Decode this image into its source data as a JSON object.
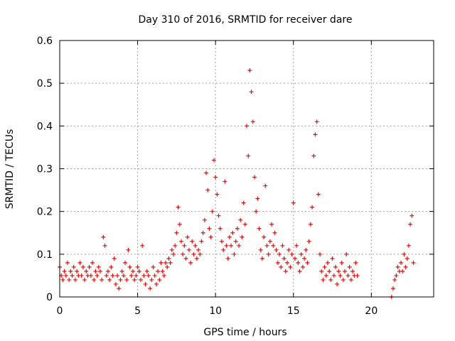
{
  "chart_data": {
    "type": "scatter",
    "title": "Day 310 of 2016, SRMTID for receiver dare",
    "xlabel": "GPS time / hours",
    "ylabel": "SRMTID / TECUs",
    "xlim": [
      0,
      24
    ],
    "ylim": [
      0,
      0.6
    ],
    "xticks": [
      0,
      5,
      10,
      15,
      20
    ],
    "yticks": [
      0,
      0.1,
      0.2,
      0.3,
      0.4,
      0.5,
      0.6
    ],
    "xtick_labels": [
      "0",
      "5",
      "10",
      "15",
      "20"
    ],
    "ytick_labels": [
      "0",
      "0.1",
      "0.2",
      "0.3",
      "0.4",
      "0.5",
      "0.6"
    ],
    "grid": true,
    "marker": "+",
    "series": [
      {
        "name": "SRMTID",
        "color": "#ff0000",
        "points": [
          [
            0.0,
            0.07
          ],
          [
            0.1,
            0.05
          ],
          [
            0.2,
            0.04
          ],
          [
            0.3,
            0.06
          ],
          [
            0.4,
            0.05
          ],
          [
            0.5,
            0.08
          ],
          [
            0.6,
            0.04
          ],
          [
            0.7,
            0.06
          ],
          [
            0.8,
            0.05
          ],
          [
            0.9,
            0.07
          ],
          [
            1.0,
            0.04
          ],
          [
            1.1,
            0.06
          ],
          [
            1.2,
            0.05
          ],
          [
            1.3,
            0.08
          ],
          [
            1.4,
            0.05
          ],
          [
            1.5,
            0.07
          ],
          [
            1.6,
            0.04
          ],
          [
            1.7,
            0.06
          ],
          [
            1.8,
            0.05
          ],
          [
            1.9,
            0.07
          ],
          [
            2.0,
            0.05
          ],
          [
            2.1,
            0.08
          ],
          [
            2.2,
            0.04
          ],
          [
            2.3,
            0.06
          ],
          [
            2.4,
            0.05
          ],
          [
            2.5,
            0.07
          ],
          [
            2.6,
            0.06
          ],
          [
            2.7,
            0.04
          ],
          [
            2.8,
            0.14
          ],
          [
            2.9,
            0.12
          ],
          [
            3.0,
            0.05
          ],
          [
            3.1,
            0.06
          ],
          [
            3.2,
            0.04
          ],
          [
            3.3,
            0.07
          ],
          [
            3.4,
            0.05
          ],
          [
            3.5,
            0.09
          ],
          [
            3.6,
            0.03
          ],
          [
            3.7,
            0.05
          ],
          [
            3.8,
            0.02
          ],
          [
            3.9,
            0.04
          ],
          [
            4.0,
            0.06
          ],
          [
            4.1,
            0.05
          ],
          [
            4.2,
            0.08
          ],
          [
            4.3,
            0.04
          ],
          [
            4.4,
            0.11
          ],
          [
            4.5,
            0.07
          ],
          [
            4.6,
            0.05
          ],
          [
            4.7,
            0.06
          ],
          [
            4.8,
            0.04
          ],
          [
            4.9,
            0.05
          ],
          [
            5.0,
            0.07
          ],
          [
            5.1,
            0.06
          ],
          [
            5.2,
            0.04
          ],
          [
            5.3,
            0.12
          ],
          [
            5.4,
            0.05
          ],
          [
            5.5,
            0.03
          ],
          [
            5.6,
            0.06
          ],
          [
            5.7,
            0.05
          ],
          [
            5.8,
            0.02
          ],
          [
            5.9,
            0.04
          ],
          [
            6.0,
            0.07
          ],
          [
            6.1,
            0.05
          ],
          [
            6.2,
            0.03
          ],
          [
            6.3,
            0.06
          ],
          [
            6.4,
            0.04
          ],
          [
            6.5,
            0.08
          ],
          [
            6.6,
            0.06
          ],
          [
            6.7,
            0.05
          ],
          [
            6.8,
            0.08
          ],
          [
            6.9,
            0.07
          ],
          [
            7.0,
            0.09
          ],
          [
            7.1,
            0.08
          ],
          [
            7.2,
            0.11
          ],
          [
            7.3,
            0.1
          ],
          [
            7.4,
            0.12
          ],
          [
            7.5,
            0.15
          ],
          [
            7.6,
            0.21
          ],
          [
            7.7,
            0.17
          ],
          [
            7.8,
            0.13
          ],
          [
            7.9,
            0.1
          ],
          [
            8.0,
            0.12
          ],
          [
            8.1,
            0.09
          ],
          [
            8.2,
            0.14
          ],
          [
            8.3,
            0.11
          ],
          [
            8.4,
            0.08
          ],
          [
            8.5,
            0.13
          ],
          [
            8.6,
            0.1
          ],
          [
            8.7,
            0.12
          ],
          [
            8.8,
            0.09
          ],
          [
            8.9,
            0.11
          ],
          [
            9.0,
            0.1
          ],
          [
            9.1,
            0.13
          ],
          [
            9.2,
            0.15
          ],
          [
            9.3,
            0.18
          ],
          [
            9.4,
            0.29
          ],
          [
            9.5,
            0.25
          ],
          [
            9.6,
            0.16
          ],
          [
            9.7,
            0.14
          ],
          [
            9.8,
            0.2
          ],
          [
            9.9,
            0.32
          ],
          [
            10.0,
            0.28
          ],
          [
            10.1,
            0.24
          ],
          [
            10.2,
            0.19
          ],
          [
            10.3,
            0.16
          ],
          [
            10.4,
            0.13
          ],
          [
            10.5,
            0.11
          ],
          [
            10.6,
            0.27
          ],
          [
            10.7,
            0.12
          ],
          [
            10.8,
            0.09
          ],
          [
            10.9,
            0.14
          ],
          [
            11.0,
            0.12
          ],
          [
            11.1,
            0.15
          ],
          [
            11.2,
            0.1
          ],
          [
            11.3,
            0.13
          ],
          [
            11.4,
            0.16
          ],
          [
            11.5,
            0.12
          ],
          [
            11.6,
            0.18
          ],
          [
            11.7,
            0.14
          ],
          [
            11.8,
            0.22
          ],
          [
            11.9,
            0.17
          ],
          [
            12.0,
            0.4
          ],
          [
            12.1,
            0.33
          ],
          [
            12.2,
            0.53
          ],
          [
            12.3,
            0.48
          ],
          [
            12.4,
            0.41
          ],
          [
            12.5,
            0.28
          ],
          [
            12.6,
            0.2
          ],
          [
            12.7,
            0.23
          ],
          [
            12.8,
            0.16
          ],
          [
            12.9,
            0.11
          ],
          [
            13.0,
            0.09
          ],
          [
            13.1,
            0.14
          ],
          [
            13.2,
            0.26
          ],
          [
            13.3,
            0.12
          ],
          [
            13.4,
            0.1
          ],
          [
            13.5,
            0.13
          ],
          [
            13.6,
            0.17
          ],
          [
            13.7,
            0.12
          ],
          [
            13.8,
            0.15
          ],
          [
            13.9,
            0.11
          ],
          [
            14.0,
            0.08
          ],
          [
            14.1,
            0.1
          ],
          [
            14.2,
            0.07
          ],
          [
            14.3,
            0.12
          ],
          [
            14.4,
            0.09
          ],
          [
            14.5,
            0.06
          ],
          [
            14.6,
            0.08
          ],
          [
            14.7,
            0.11
          ],
          [
            14.8,
            0.07
          ],
          [
            14.9,
            0.1
          ],
          [
            15.0,
            0.22
          ],
          [
            15.1,
            0.09
          ],
          [
            15.2,
            0.12
          ],
          [
            15.3,
            0.08
          ],
          [
            15.4,
            0.06
          ],
          [
            15.5,
            0.1
          ],
          [
            15.6,
            0.07
          ],
          [
            15.7,
            0.09
          ],
          [
            15.8,
            0.11
          ],
          [
            15.9,
            0.08
          ],
          [
            16.0,
            0.13
          ],
          [
            16.1,
            0.17
          ],
          [
            16.2,
            0.21
          ],
          [
            16.3,
            0.33
          ],
          [
            16.4,
            0.38
          ],
          [
            16.5,
            0.41
          ],
          [
            16.6,
            0.24
          ],
          [
            16.7,
            0.1
          ],
          [
            16.8,
            0.06
          ],
          [
            16.9,
            0.04
          ],
          [
            17.0,
            0.07
          ],
          [
            17.1,
            0.05
          ],
          [
            17.2,
            0.08
          ],
          [
            17.3,
            0.06
          ],
          [
            17.4,
            0.04
          ],
          [
            17.5,
            0.09
          ],
          [
            17.6,
            0.05
          ],
          [
            17.7,
            0.07
          ],
          [
            17.8,
            0.03
          ],
          [
            17.9,
            0.06
          ],
          [
            18.0,
            0.05
          ],
          [
            18.1,
            0.08
          ],
          [
            18.2,
            0.04
          ],
          [
            18.3,
            0.06
          ],
          [
            18.4,
            0.1
          ],
          [
            18.5,
            0.05
          ],
          [
            18.6,
            0.07
          ],
          [
            18.7,
            0.04
          ],
          [
            18.8,
            0.06
          ],
          [
            18.9,
            0.05
          ],
          [
            19.0,
            0.08
          ],
          [
            19.1,
            0.05
          ],
          [
            21.3,
            0.0
          ],
          [
            21.4,
            0.02
          ],
          [
            21.5,
            0.04
          ],
          [
            21.6,
            0.05
          ],
          [
            21.7,
            0.07
          ],
          [
            21.8,
            0.06
          ],
          [
            21.9,
            0.08
          ],
          [
            22.0,
            0.06
          ],
          [
            22.1,
            0.1
          ],
          [
            22.2,
            0.07
          ],
          [
            22.3,
            0.09
          ],
          [
            22.4,
            0.12
          ],
          [
            22.5,
            0.17
          ],
          [
            22.6,
            0.19
          ],
          [
            22.7,
            0.08
          ]
        ]
      }
    ]
  }
}
